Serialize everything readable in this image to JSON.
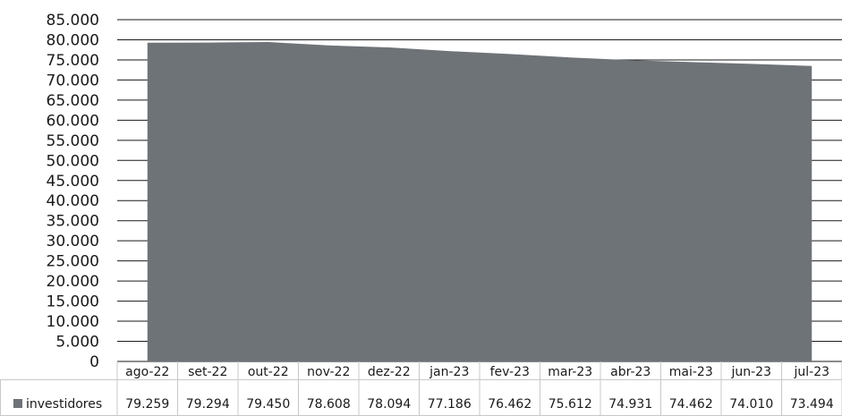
{
  "chart_data": {
    "type": "area",
    "categories": [
      "ago-22",
      "set-22",
      "out-22",
      "nov-22",
      "dez-22",
      "jan-23",
      "fev-23",
      "mar-23",
      "abr-23",
      "mai-23",
      "jun-23",
      "jul-23"
    ],
    "series": [
      {
        "name": "investidores",
        "values": [
          79259,
          79294,
          79450,
          78608,
          78094,
          77186,
          76462,
          75612,
          74931,
          74462,
          74010,
          73494
        ],
        "value_labels": [
          "79.259",
          "79.294",
          "79.450",
          "78.608",
          "78.094",
          "77.186",
          "76.462",
          "75.612",
          "74.931",
          "74.462",
          "74.010",
          "73.494"
        ]
      }
    ],
    "ylim": [
      0,
      85000
    ],
    "ytick_labels": [
      "0",
      "5.000",
      "10.000",
      "15.000",
      "20.000",
      "25.000",
      "30.000",
      "35.000",
      "40.000",
      "45.000",
      "50.000",
      "55.000",
      "60.000",
      "65.000",
      "70.000",
      "75.000",
      "80.000",
      "85.000"
    ],
    "grid": true,
    "data_table": true,
    "colors": {
      "area": "#6e7378",
      "grid": "#1a1a1a",
      "table_border": "#c8c8c8"
    }
  }
}
